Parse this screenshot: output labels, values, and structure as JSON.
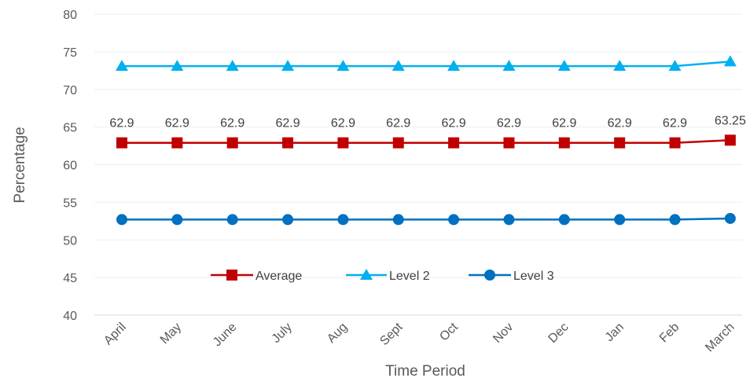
{
  "chart_data": {
    "type": "line",
    "categories": [
      "April",
      "May",
      "June",
      "July",
      "Aug",
      "Sept",
      "Oct",
      "Nov",
      "Dec",
      "Jan",
      "Feb",
      "March"
    ],
    "series": [
      {
        "name": "Average",
        "values": [
          62.9,
          62.9,
          62.9,
          62.9,
          62.9,
          62.9,
          62.9,
          62.9,
          62.9,
          62.9,
          62.9,
          63.25
        ],
        "color": "#C00000",
        "marker": "square",
        "data_labels": [
          "62.9",
          "62.9",
          "62.9",
          "62.9",
          "62.9",
          "62.9",
          "62.9",
          "62.9",
          "62.9",
          "62.9",
          "62.9",
          "63.25"
        ]
      },
      {
        "name": "Level 2",
        "values": [
          73.1,
          73.1,
          73.1,
          73.1,
          73.1,
          73.1,
          73.1,
          73.1,
          73.1,
          73.1,
          73.1,
          73.7
        ],
        "color": "#00B0F0",
        "marker": "triangle"
      },
      {
        "name": "Level 3",
        "values": [
          52.7,
          52.7,
          52.7,
          52.7,
          52.7,
          52.7,
          52.7,
          52.7,
          52.7,
          52.7,
          52.7,
          52.85
        ],
        "color": "#0070C0",
        "marker": "circle"
      }
    ],
    "title": "",
    "xlabel": "Time Period",
    "ylabel": "Percentage",
    "ylim": [
      40,
      80
    ],
    "yticks": [
      "40",
      "45",
      "50",
      "55",
      "60",
      "65",
      "70",
      "75",
      "80"
    ],
    "grid": true,
    "legend_position": "inside-bottom-center"
  }
}
